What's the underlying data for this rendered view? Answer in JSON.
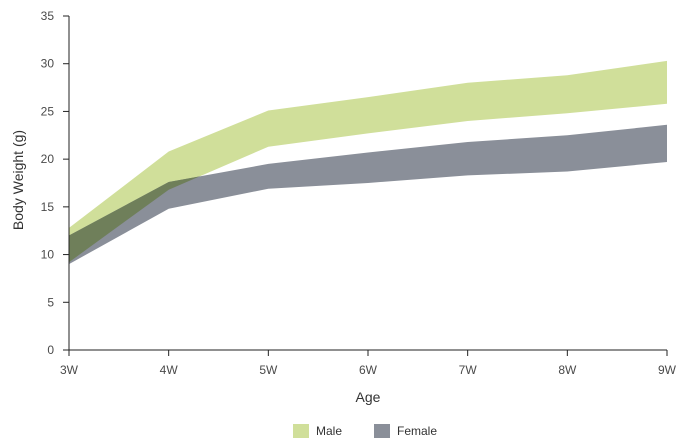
{
  "chart_data": {
    "type": "area",
    "title": "",
    "xlabel": "Age",
    "ylabel": "Body Weight (g)",
    "x": [
      "3W",
      "4W",
      "5W",
      "6W",
      "7W",
      "8W",
      "9W"
    ],
    "ylim": [
      0,
      35
    ],
    "yticks": [
      0,
      5,
      10,
      15,
      20,
      25,
      30,
      35
    ],
    "grid": false,
    "legend_position": "bottom-center",
    "series": [
      {
        "name": "Male",
        "color": "#d0df9a",
        "upper": [
          12.8,
          20.8,
          25.1,
          26.5,
          28.0,
          28.8,
          30.3
        ],
        "lower": [
          9.2,
          16.8,
          21.3,
          22.7,
          24.0,
          24.8,
          25.8
        ]
      },
      {
        "name": "Female",
        "color": "#8a8f99",
        "upper": [
          12.0,
          17.6,
          19.5,
          20.7,
          21.8,
          22.5,
          23.6
        ],
        "lower": [
          9.0,
          14.8,
          16.9,
          17.5,
          18.3,
          18.7,
          19.7
        ]
      }
    ],
    "overlap_color": "#6f7f5a"
  }
}
